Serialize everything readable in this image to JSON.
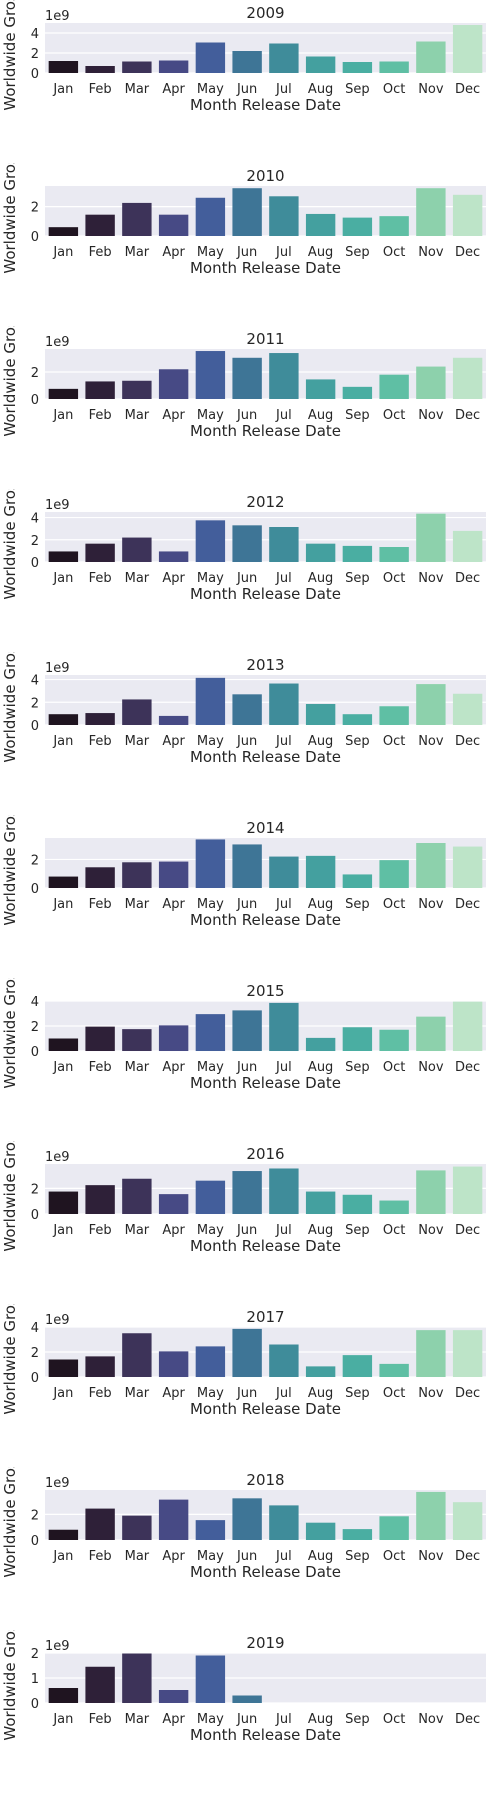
{
  "chart_data": [
    {
      "type": "bar",
      "title": "2009",
      "xlabel": "Month Release Date",
      "ylabel": "Worldwide Gross",
      "offset_text": "1e9",
      "ylim": [
        0,
        5.0
      ],
      "yticks": [
        0,
        2,
        4
      ],
      "categories": [
        "Jan",
        "Feb",
        "Mar",
        "Apr",
        "May",
        "Jun",
        "Jul",
        "Aug",
        "Sep",
        "Oct",
        "Nov",
        "Dec"
      ],
      "values": [
        1.2,
        0.7,
        1.15,
        1.25,
        3.05,
        2.2,
        2.95,
        1.65,
        1.1,
        1.15,
        3.15,
        4.8
      ]
    },
    {
      "type": "bar",
      "title": "2010",
      "xlabel": "Month Release Date",
      "ylabel": "Worldwide Gross",
      "offset_text": "",
      "ylim": [
        0,
        3.4
      ],
      "yticks": [
        0,
        2
      ],
      "categories": [
        "Jan",
        "Feb",
        "Mar",
        "Apr",
        "May",
        "Jun",
        "Jul",
        "Aug",
        "Sep",
        "Oct",
        "Nov",
        "Dec"
      ],
      "values": [
        0.6,
        1.45,
        2.25,
        1.45,
        2.6,
        3.25,
        2.7,
        1.5,
        1.25,
        1.35,
        3.25,
        2.8
      ]
    },
    {
      "type": "bar",
      "title": "2011",
      "xlabel": "Month Release Date",
      "ylabel": "Worldwide Gross",
      "offset_text": "1e9",
      "ylim": [
        0,
        3.7
      ],
      "yticks": [
        0,
        2
      ],
      "categories": [
        "Jan",
        "Feb",
        "Mar",
        "Apr",
        "May",
        "Jun",
        "Jul",
        "Aug",
        "Sep",
        "Oct",
        "Nov",
        "Dec"
      ],
      "values": [
        0.75,
        1.3,
        1.35,
        2.2,
        3.55,
        3.05,
        3.4,
        1.45,
        0.9,
        1.8,
        2.4,
        3.05
      ]
    },
    {
      "type": "bar",
      "title": "2012",
      "xlabel": "Month Release Date",
      "ylabel": "Worldwide Gross",
      "offset_text": "1e9",
      "ylim": [
        0,
        4.5
      ],
      "yticks": [
        0,
        2,
        4
      ],
      "categories": [
        "Jan",
        "Feb",
        "Mar",
        "Apr",
        "May",
        "Jun",
        "Jul",
        "Aug",
        "Sep",
        "Oct",
        "Nov",
        "Dec"
      ],
      "values": [
        0.95,
        1.65,
        2.2,
        0.95,
        3.75,
        3.3,
        3.15,
        1.65,
        1.45,
        1.35,
        4.35,
        2.8
      ]
    },
    {
      "type": "bar",
      "title": "2013",
      "xlabel": "Month Release Date",
      "ylabel": "Worldwide Gross",
      "offset_text": "1e9",
      "ylim": [
        0,
        4.4
      ],
      "yticks": [
        0,
        2,
        4
      ],
      "categories": [
        "Jan",
        "Feb",
        "Mar",
        "Apr",
        "May",
        "Jun",
        "Jul",
        "Aug",
        "Sep",
        "Oct",
        "Nov",
        "Dec"
      ],
      "values": [
        0.95,
        1.05,
        2.25,
        0.8,
        4.15,
        2.7,
        3.65,
        1.85,
        0.95,
        1.65,
        3.6,
        2.75
      ]
    },
    {
      "type": "bar",
      "title": "2014",
      "xlabel": "Month Release Date",
      "ylabel": "Worldwide Gross",
      "offset_text": "",
      "ylim": [
        0,
        3.5
      ],
      "yticks": [
        0,
        2
      ],
      "categories": [
        "Jan",
        "Feb",
        "Mar",
        "Apr",
        "May",
        "Jun",
        "Jul",
        "Aug",
        "Sep",
        "Oct",
        "Nov",
        "Dec"
      ],
      "values": [
        0.8,
        1.45,
        1.8,
        1.85,
        3.4,
        3.05,
        2.2,
        2.25,
        0.95,
        1.95,
        3.15,
        2.9
      ]
    },
    {
      "type": "bar",
      "title": "2015",
      "xlabel": "Month Release Date",
      "ylabel": "Worldwide Gross",
      "offset_text": "",
      "ylim": [
        0,
        4.0
      ],
      "yticks": [
        0,
        2,
        4
      ],
      "categories": [
        "Jan",
        "Feb",
        "Mar",
        "Apr",
        "May",
        "Jun",
        "Jul",
        "Aug",
        "Sep",
        "Oct",
        "Nov",
        "Dec"
      ],
      "values": [
        1.0,
        1.95,
        1.75,
        2.05,
        2.95,
        3.25,
        3.85,
        1.05,
        1.9,
        1.7,
        2.75,
        3.95
      ]
    },
    {
      "type": "bar",
      "title": "2016",
      "xlabel": "Month Release Date",
      "ylabel": "Worldwide Gross",
      "offset_text": "1e9",
      "ylim": [
        0,
        3.9
      ],
      "yticks": [
        0,
        2
      ],
      "categories": [
        "Jan",
        "Feb",
        "Mar",
        "Apr",
        "May",
        "Jun",
        "Jul",
        "Aug",
        "Sep",
        "Oct",
        "Nov",
        "Dec"
      ],
      "values": [
        1.75,
        2.25,
        2.75,
        1.55,
        2.6,
        3.35,
        3.55,
        1.75,
        1.5,
        1.05,
        3.4,
        3.7
      ]
    },
    {
      "type": "bar",
      "title": "2017",
      "xlabel": "Month Release Date",
      "ylabel": "Worldwide Gross",
      "offset_text": "1e9",
      "ylim": [
        0,
        4.0
      ],
      "yticks": [
        0,
        2,
        4
      ],
      "categories": [
        "Jan",
        "Feb",
        "Mar",
        "Apr",
        "May",
        "Jun",
        "Jul",
        "Aug",
        "Sep",
        "Oct",
        "Nov",
        "Dec"
      ],
      "values": [
        1.4,
        1.65,
        3.5,
        2.05,
        2.45,
        3.85,
        2.6,
        0.85,
        1.75,
        1.05,
        3.75,
        3.75
      ]
    },
    {
      "type": "bar",
      "title": "2018",
      "xlabel": "Month Release Date",
      "ylabel": "Worldwide Gross",
      "offset_text": "1e9",
      "ylim": [
        0,
        3.9
      ],
      "yticks": [
        0,
        2
      ],
      "categories": [
        "Jan",
        "Feb",
        "Mar",
        "Apr",
        "May",
        "Jun",
        "Jul",
        "Aug",
        "Sep",
        "Oct",
        "Nov",
        "Dec"
      ],
      "values": [
        0.8,
        2.45,
        1.9,
        3.15,
        1.55,
        3.25,
        2.7,
        1.35,
        0.85,
        1.85,
        3.75,
        2.95
      ]
    },
    {
      "type": "bar",
      "title": "2019",
      "xlabel": "Month Release Date",
      "ylabel": "Worldwide Gross",
      "offset_text": "1e9",
      "ylim": [
        0,
        2.0
      ],
      "yticks": [
        0,
        1,
        2
      ],
      "categories": [
        "Jan",
        "Feb",
        "Mar",
        "Apr",
        "May",
        "Jun",
        "Jul",
        "Aug",
        "Sep",
        "Oct",
        "Nov",
        "Dec"
      ],
      "values": [
        0.6,
        1.45,
        1.98,
        0.52,
        1.9,
        0.3,
        0,
        0,
        0,
        0,
        0,
        0
      ]
    }
  ],
  "style": {
    "plot_background": "#eaeaf2",
    "grid_color": "#ffffff",
    "text_color": "#262626",
    "palette": [
      "#1f1420",
      "#2e2038",
      "#3d3359",
      "#474a85",
      "#435e9b",
      "#3e7596",
      "#3f8c9a",
      "#44a09f",
      "#4aaea2",
      "#5fbfa4",
      "#8dd1ac",
      "#bde4c8"
    ]
  }
}
